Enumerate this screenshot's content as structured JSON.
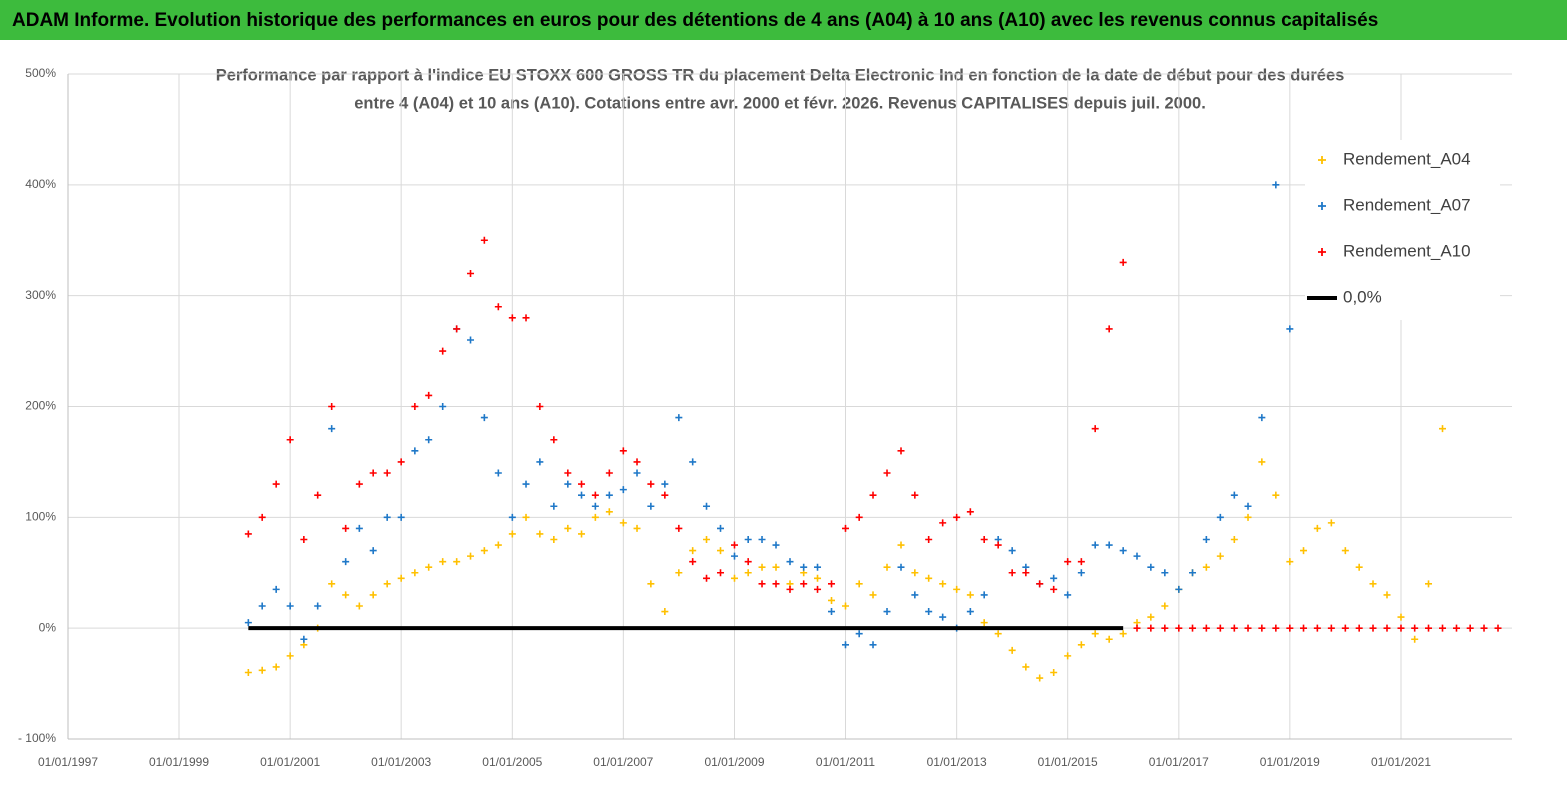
{
  "chart_data": {
    "type": "scatter",
    "title": "ADAM Informe. Evolution historique des performances en euros pour des détentions de 4 ans (A04) à 10 ans (A10) avec les revenus connus capitalisés",
    "subtitle": [
      "Performance par rapport à l'indice EU STOXX 600 GROSS TR  du placement Delta Electronic Ind  en fonction de la date de début pour des durées",
      "entre 4 (A04) et 10 ans (A10).  Cotations entre avr. 2000 et févr. 2026. Revenus CAPITALISES depuis juil. 2000."
    ],
    "xlim": [
      "1997-01-01",
      "2023-01-01"
    ],
    "xticks": [
      {
        "value": "1997-01-01",
        "label": "01/01/1997"
      },
      {
        "value": "1999-01-01",
        "label": "01/01/1999"
      },
      {
        "value": "2001-01-01",
        "label": "01/01/2001"
      },
      {
        "value": "2003-01-01",
        "label": "01/01/2003"
      },
      {
        "value": "2005-01-01",
        "label": "01/01/2005"
      },
      {
        "value": "2007-01-01",
        "label": "01/01/2007"
      },
      {
        "value": "2009-01-01",
        "label": "01/01/2009"
      },
      {
        "value": "2011-01-01",
        "label": "01/01/2011"
      },
      {
        "value": "2013-01-01",
        "label": "01/01/2013"
      },
      {
        "value": "2015-01-01",
        "label": "01/01/2015"
      },
      {
        "value": "2017-01-01",
        "label": "01/01/2017"
      },
      {
        "value": "2019-01-01",
        "label": "01/01/2019"
      },
      {
        "value": "2021-01-01",
        "label": "01/01/2021"
      }
    ],
    "ylim": [
      -100,
      500
    ],
    "yticks": [
      {
        "value": -100,
        "label": "- 100%"
      },
      {
        "value": 0,
        "label": "0%"
      },
      {
        "value": 100,
        "label": "100%"
      },
      {
        "value": 200,
        "label": "200%"
      },
      {
        "value": 300,
        "label": "300%"
      },
      {
        "value": 400,
        "label": "400%"
      },
      {
        "value": 500,
        "label": "500%"
      }
    ],
    "grid": true,
    "legend": "top-right",
    "x": [
      "2000-04-01",
      "2000-07-01",
      "2000-10-01",
      "2001-01-01",
      "2001-04-01",
      "2001-07-01",
      "2001-10-01",
      "2002-01-01",
      "2002-04-01",
      "2002-07-01",
      "2002-10-01",
      "2003-01-01",
      "2003-04-01",
      "2003-07-01",
      "2003-10-01",
      "2004-01-01",
      "2004-04-01",
      "2004-07-01",
      "2004-10-01",
      "2005-01-01",
      "2005-04-01",
      "2005-07-01",
      "2005-10-01",
      "2006-01-01",
      "2006-04-01",
      "2006-07-01",
      "2006-10-01",
      "2007-01-01",
      "2007-04-01",
      "2007-07-01",
      "2007-10-01",
      "2008-01-01",
      "2008-04-01",
      "2008-07-01",
      "2008-10-01",
      "2009-01-01",
      "2009-04-01",
      "2009-07-01",
      "2009-10-01",
      "2010-01-01",
      "2010-04-01",
      "2010-07-01",
      "2010-10-01",
      "2011-01-01",
      "2011-04-01",
      "2011-07-01",
      "2011-10-01",
      "2012-01-01",
      "2012-04-01",
      "2012-07-01",
      "2012-10-01",
      "2013-01-01",
      "2013-04-01",
      "2013-07-01",
      "2013-10-01",
      "2014-01-01",
      "2014-04-01",
      "2014-07-01",
      "2014-10-01",
      "2015-01-01",
      "2015-04-01",
      "2015-07-01",
      "2015-10-01",
      "2016-01-01",
      "2016-04-01",
      "2016-07-01",
      "2016-10-01",
      "2017-01-01",
      "2017-04-01",
      "2017-07-01",
      "2017-10-01",
      "2018-01-01",
      "2018-04-01",
      "2018-07-01",
      "2018-10-01",
      "2019-01-01",
      "2019-04-01",
      "2019-07-01",
      "2019-10-01",
      "2020-01-01",
      "2020-04-01",
      "2020-07-01",
      "2020-10-01",
      "2021-01-01",
      "2021-04-01",
      "2021-07-01",
      "2021-10-01",
      "2022-01-01",
      "2022-04-01",
      "2022-07-01",
      "2022-10-01"
    ],
    "series": [
      {
        "name": "Rendement_A04",
        "color": "#ffc000",
        "mark": "plus",
        "values": [
          -40,
          -38,
          -35,
          -25,
          -15,
          0,
          40,
          30,
          20,
          30,
          40,
          45,
          50,
          55,
          60,
          60,
          65,
          70,
          75,
          85,
          100,
          85,
          80,
          90,
          85,
          100,
          105,
          95,
          90,
          40,
          15,
          50,
          70,
          80,
          70,
          45,
          50,
          55,
          55,
          40,
          50,
          45,
          25,
          20,
          40,
          30,
          55,
          75,
          50,
          45,
          40,
          35,
          30,
          5,
          -5,
          -20,
          -35,
          -45,
          -40,
          -25,
          -15,
          -5,
          -10,
          -5,
          5,
          10,
          20,
          35,
          50,
          55,
          65,
          80,
          100,
          150,
          120,
          60,
          70,
          90,
          95,
          70,
          55,
          40,
          30,
          10,
          -10,
          40,
          180,
          null,
          null,
          null,
          null
        ]
      },
      {
        "name": "Rendement_A07",
        "color": "#1f78c8",
        "mark": "plus",
        "values": [
          5,
          20,
          35,
          20,
          -10,
          20,
          180,
          60,
          90,
          70,
          100,
          100,
          160,
          170,
          200,
          270,
          260,
          190,
          140,
          100,
          130,
          150,
          110,
          130,
          120,
          110,
          120,
          125,
          140,
          110,
          130,
          190,
          150,
          110,
          90,
          65,
          80,
          80,
          75,
          60,
          55,
          55,
          15,
          -15,
          -5,
          -15,
          15,
          55,
          30,
          15,
          10,
          0,
          15,
          30,
          80,
          70,
          55,
          40,
          45,
          30,
          50,
          75,
          75,
          70,
          65,
          55,
          50,
          35,
          50,
          80,
          100,
          120,
          110,
          190,
          400,
          270,
          null,
          null,
          null,
          null,
          null,
          null,
          null,
          null,
          null,
          null,
          null,
          null,
          null,
          null,
          null
        ]
      },
      {
        "name": "Rendement_A10",
        "color": "#ff0000",
        "mark": "plus",
        "values": [
          85,
          100,
          130,
          170,
          80,
          120,
          200,
          90,
          130,
          140,
          140,
          150,
          200,
          210,
          250,
          270,
          320,
          350,
          290,
          280,
          280,
          200,
          170,
          140,
          130,
          120,
          140,
          160,
          150,
          130,
          120,
          90,
          60,
          45,
          50,
          75,
          60,
          40,
          40,
          35,
          40,
          35,
          40,
          90,
          100,
          120,
          140,
          160,
          120,
          80,
          95,
          100,
          105,
          80,
          75,
          50,
          50,
          40,
          35,
          60,
          60,
          180,
          270,
          330,
          0,
          0,
          0,
          0,
          0,
          0,
          0,
          0,
          0,
          0,
          0,
          0,
          0,
          0,
          0,
          0,
          0,
          0,
          0,
          0,
          0,
          0,
          0,
          0,
          0,
          0,
          0
        ]
      },
      {
        "name": "0,0%",
        "color": "#000000",
        "mark": "line",
        "x": [
          "2000-04-01",
          "2016-01-01"
        ],
        "values": [
          0,
          0
        ]
      }
    ]
  }
}
